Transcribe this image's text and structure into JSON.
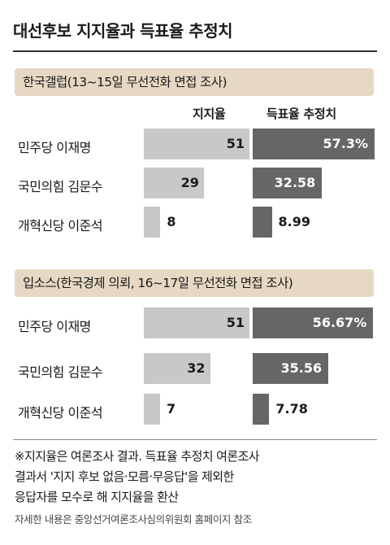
{
  "title": "대선후보 지지율과 득표율 추정치",
  "chart_data": [
    {
      "type": "bar",
      "banner": "한국갤럽(13~15일 무선전화 면접 조사)",
      "column_headers": [
        "지지율",
        "득표율 추정치"
      ],
      "categories": [
        "민주당 이재명",
        "국민의힘 김문수",
        "개혁신당 이준석"
      ],
      "series": [
        {
          "name": "지지율",
          "values": [
            51,
            29,
            8
          ],
          "labels": [
            "51",
            "29",
            "8"
          ]
        },
        {
          "name": "득표율 추정치",
          "values": [
            57.3,
            32.58,
            8.99
          ],
          "labels": [
            "57.3%",
            "32.58",
            "8.99"
          ]
        }
      ]
    },
    {
      "type": "bar",
      "banner": "입소스(한국경제 의뢰, 16~17일 무선전화 면접 조사)",
      "categories": [
        "민주당 이재명",
        "국민의힘 김문수",
        "개혁신당 이준석"
      ],
      "series": [
        {
          "name": "지지율",
          "values": [
            51,
            32,
            7
          ],
          "labels": [
            "51",
            "32",
            "7"
          ]
        },
        {
          "name": "득표율 추정치",
          "values": [
            56.67,
            35.56,
            7.78
          ],
          "labels": [
            "56.67%",
            "35.56",
            "7.78"
          ]
        }
      ]
    }
  ],
  "notes": [
    "※지지율은 여론조사 결과. 득표율 추정치 여론조사",
    "결과서 '지지 후보 없음·모름·무응답'을 제외한",
    "응답자를 모수로 해 지지율을 환산"
  ],
  "source": "자세한 내용은 중앙선거여론조사심의위원회 홈페이지 참조",
  "colors": {
    "support": "#c8c8c8",
    "vote": "#666666",
    "banner": "#e6d8c3"
  }
}
